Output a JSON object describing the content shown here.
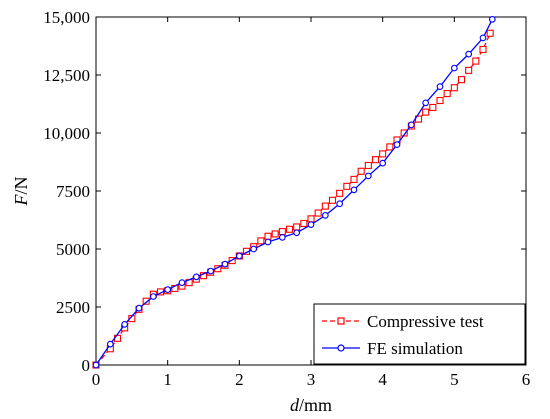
{
  "chart_data": {
    "type": "line",
    "xlabel": {
      "var": "d",
      "unit": "/mm"
    },
    "ylabel": {
      "var": "F",
      "unit": "/N"
    },
    "xlim": [
      0,
      6
    ],
    "ylim": [
      0,
      15000
    ],
    "x_ticks": [
      "0",
      "1",
      "2",
      "3",
      "4",
      "5",
      "6"
    ],
    "y_ticks": [
      "0",
      "2500",
      "5000",
      "7500",
      "10,000",
      "12,500",
      "15,000"
    ],
    "grid": false,
    "legend_position": "bottom-right",
    "series": [
      {
        "name": "Compressive test",
        "color": "#ff0000",
        "line_style": "dashed",
        "marker": "square",
        "x": [
          0,
          0.2,
          0.3,
          0.4,
          0.5,
          0.6,
          0.7,
          0.8,
          0.9,
          1.0,
          1.1,
          1.2,
          1.3,
          1.4,
          1.5,
          1.6,
          1.7,
          1.8,
          1.9,
          2.0,
          2.1,
          2.2,
          2.3,
          2.4,
          2.5,
          2.6,
          2.7,
          2.8,
          2.9,
          3.0,
          3.1,
          3.2,
          3.3,
          3.4,
          3.5,
          3.6,
          3.7,
          3.8,
          3.9,
          4.0,
          4.1,
          4.2,
          4.3,
          4.4,
          4.5,
          4.6,
          4.7,
          4.8,
          4.9,
          5.0,
          5.1,
          5.2,
          5.3,
          5.4,
          5.5
        ],
        "y": [
          0,
          700,
          1150,
          1600,
          2000,
          2400,
          2750,
          3050,
          3150,
          3200,
          3300,
          3400,
          3550,
          3700,
          3850,
          4000,
          4150,
          4300,
          4500,
          4700,
          4900,
          5100,
          5350,
          5550,
          5650,
          5750,
          5850,
          5950,
          6100,
          6300,
          6550,
          6850,
          7100,
          7400,
          7700,
          8000,
          8350,
          8600,
          8850,
          9100,
          9400,
          9700,
          10000,
          10300,
          10600,
          10900,
          11100,
          11400,
          11700,
          11950,
          12300,
          12700,
          13100,
          13600,
          14300
        ]
      },
      {
        "name": "FE simulation",
        "color": "#0000ff",
        "line_style": "solid",
        "marker": "circle",
        "x": [
          0,
          0.2,
          0.4,
          0.6,
          0.8,
          1.0,
          1.2,
          1.4,
          1.6,
          1.8,
          2.0,
          2.2,
          2.4,
          2.6,
          2.8,
          3.0,
          3.2,
          3.4,
          3.6,
          3.8,
          4.0,
          4.2,
          4.4,
          4.6,
          4.8,
          5.0,
          5.2,
          5.4,
          5.53
        ],
        "y": [
          0,
          900,
          1750,
          2450,
          2950,
          3250,
          3550,
          3800,
          4050,
          4350,
          4700,
          5000,
          5300,
          5500,
          5700,
          6050,
          6450,
          6950,
          7550,
          8150,
          8700,
          9500,
          10350,
          11300,
          12000,
          12800,
          13400,
          14100,
          14900
        ]
      }
    ]
  }
}
